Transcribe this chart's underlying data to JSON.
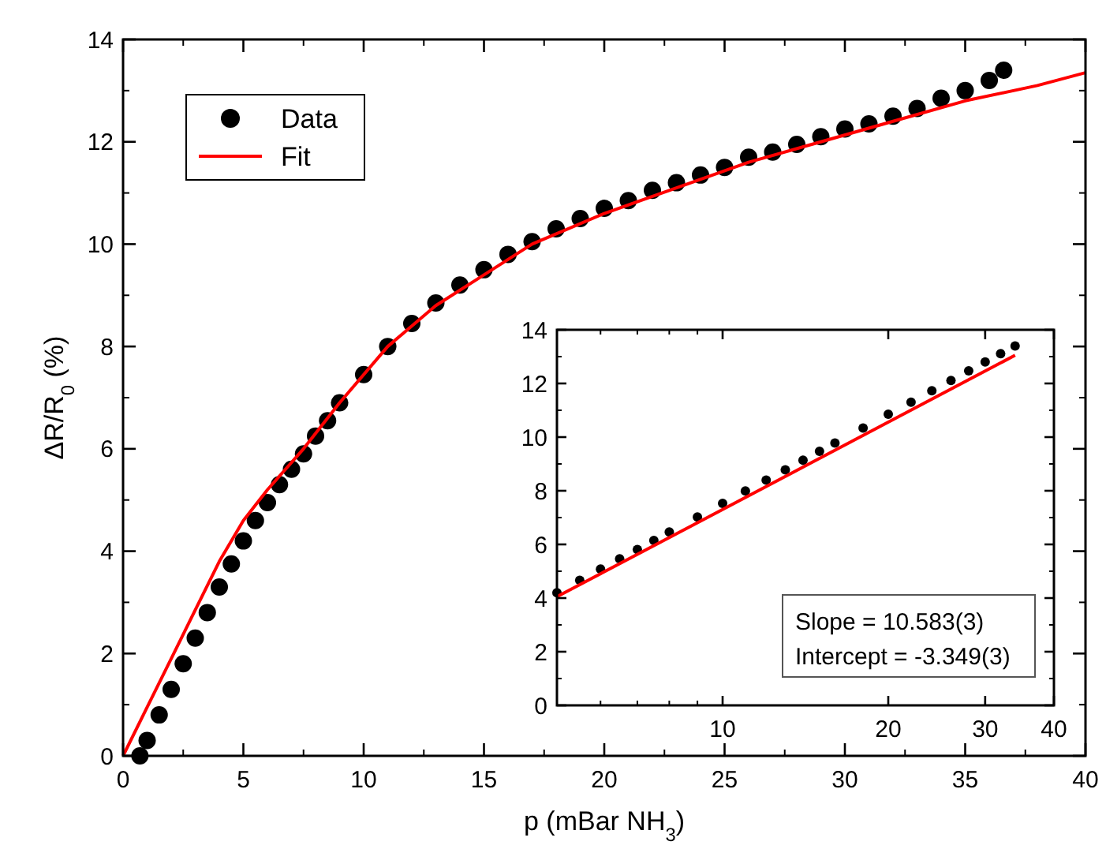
{
  "chart_data": [
    {
      "type": "scatter",
      "xlabel": "p (mBar NH$_{3}$)",
      "ylabel": "ΔR/R$_{0}$ (%)",
      "xlim": [
        0,
        40
      ],
      "ylim": [
        0,
        14
      ],
      "xticks": [
        0,
        5,
        10,
        15,
        20,
        25,
        30,
        35,
        40
      ],
      "yticks": [
        0,
        2,
        4,
        6,
        8,
        10,
        12,
        14
      ],
      "legend": "top left",
      "series": [
        {
          "name": "Data",
          "type": "scatter",
          "marker": "circle",
          "color": "#000000",
          "x": [
            0.7,
            1,
            1.5,
            2,
            2.5,
            3,
            3.5,
            4,
            4.5,
            5,
            5.5,
            6,
            6.5,
            7,
            7.5,
            8,
            8.5,
            9,
            10,
            11,
            12,
            13,
            14,
            15,
            16,
            17,
            18,
            19,
            20,
            21,
            22,
            23,
            24,
            25,
            26,
            27,
            28,
            29,
            30,
            31,
            32,
            33,
            34,
            35,
            36,
            36.6
          ],
          "values": [
            0,
            0.3,
            0.8,
            1.3,
            1.8,
            2.3,
            2.8,
            3.3,
            3.75,
            4.2,
            4.6,
            4.95,
            5.3,
            5.6,
            5.9,
            6.25,
            6.55,
            6.9,
            7.45,
            8.0,
            8.45,
            8.85,
            9.2,
            9.5,
            9.8,
            10.05,
            10.3,
            10.5,
            10.7,
            10.85,
            11.05,
            11.2,
            11.35,
            11.5,
            11.7,
            11.8,
            11.95,
            12.1,
            12.25,
            12.35,
            12.5,
            12.65,
            12.85,
            13.0,
            13.2,
            13.4
          ]
        },
        {
          "name": "Fit",
          "type": "line",
          "color": "#ff0000",
          "x": [
            0,
            1,
            2,
            3,
            4,
            5,
            6,
            7.5,
            9,
            11,
            13,
            15,
            17,
            20,
            23,
            26,
            29,
            32,
            35,
            38,
            40
          ],
          "values": [
            0,
            0.95,
            1.9,
            2.85,
            3.8,
            4.6,
            5.2,
            6.0,
            6.9,
            8.0,
            8.8,
            9.4,
            10.0,
            10.6,
            11.1,
            11.6,
            12.0,
            12.4,
            12.8,
            13.1,
            13.35
          ]
        }
      ]
    },
    {
      "type": "scatter",
      "log": "x",
      "xlim": [
        5,
        40
      ],
      "ylim": [
        0,
        14
      ],
      "xticks": [
        10,
        20,
        30,
        40
      ],
      "yticks": [
        0,
        2,
        4,
        6,
        8,
        10,
        12,
        14
      ],
      "annotations": [
        "Slope = 10.583(3)",
        "Intercept = -3.349(3)"
      ],
      "series": [
        {
          "type": "scatter",
          "marker": "circle",
          "color": "#000000",
          "x": [
            5,
            5.5,
            6,
            6.5,
            7,
            7.5,
            8,
            9,
            10,
            11,
            12,
            13,
            14,
            15,
            16,
            18,
            20,
            22,
            24,
            26,
            28,
            30,
            32,
            34
          ],
          "values": [
            4.2,
            4.66,
            5.08,
            5.46,
            5.81,
            6.15,
            6.46,
            7.02,
            7.53,
            7.99,
            8.4,
            8.78,
            9.14,
            9.47,
            9.78,
            10.34,
            10.85,
            11.3,
            11.73,
            12.11,
            12.47,
            12.8,
            13.11,
            13.4
          ]
        },
        {
          "type": "line",
          "color": "#ff0000",
          "x": [
            5,
            10,
            20,
            34
          ],
          "values": [
            4.05,
            7.3,
            10.56,
            13.05
          ]
        }
      ]
    }
  ]
}
